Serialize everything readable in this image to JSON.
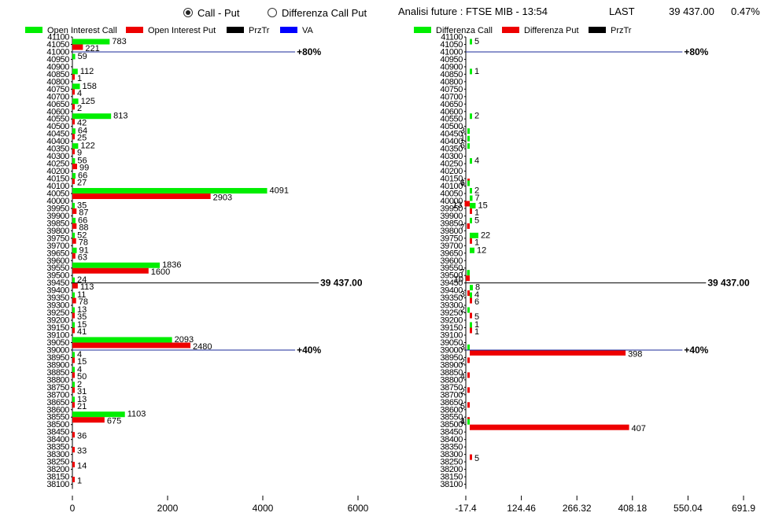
{
  "header": {
    "radio_call_put": "Call - Put",
    "radio_diff": "Differenza Call Put",
    "title": "Analisi future : FTSE MIB - 13:54",
    "last_label": "LAST",
    "last_value": "39 437.00",
    "change": "0.47%"
  },
  "chart_data": [
    {
      "type": "bar",
      "orientation": "horizontal",
      "legend": [
        "Open Interest Call",
        "Open Interest Put",
        "PrzTr",
        "VA"
      ],
      "legend_colors": [
        "#00ee00",
        "#ee0000",
        "#000000",
        "#0000ff"
      ],
      "y_labels": [
        "41100",
        "41050",
        "41000",
        "40950",
        "40900",
        "40850",
        "40800",
        "40750",
        "40700",
        "40650",
        "40600",
        "40550",
        "40500",
        "40450",
        "40400",
        "40350",
        "40300",
        "40250",
        "40200",
        "40150",
        "40100",
        "40050",
        "40000",
        "39950",
        "39900",
        "39850",
        "39800",
        "39750",
        "39700",
        "39650",
        "39600",
        "39550",
        "39500",
        "39450",
        "39400",
        "39350",
        "39300",
        "39250",
        "39200",
        "39150",
        "39100",
        "39050",
        "39000",
        "38950",
        "38900",
        "38850",
        "38800",
        "38750",
        "38700",
        "38650",
        "38600",
        "38550",
        "38500",
        "38450",
        "38400",
        "38350",
        "38300",
        "38250",
        "38200",
        "38150",
        "38100"
      ],
      "x_ticks": [
        0,
        2000,
        4000,
        6000
      ],
      "xlim": [
        0,
        6000
      ],
      "bars": [
        {
          "strike": "41050",
          "call": 783,
          "put": 221
        },
        {
          "strike": "40950",
          "call": 59
        },
        {
          "strike": "40850",
          "call": 112,
          "put": 1
        },
        {
          "strike": "40750",
          "call": 158,
          "put": 4
        },
        {
          "strike": "40650",
          "call": 125,
          "put": 2
        },
        {
          "strike": "40550",
          "call": 813,
          "put": 42
        },
        {
          "strike": "40450",
          "call": 64,
          "put": 25
        },
        {
          "strike": "40350",
          "call": 122,
          "put": 9
        },
        {
          "strike": "40250",
          "call": 56,
          "put": 99
        },
        {
          "strike": "40150",
          "call": 66,
          "put": 27
        },
        {
          "strike": "40050",
          "call": 4091,
          "put": 2903
        },
        {
          "strike": "39950",
          "call": 35,
          "put": 87
        },
        {
          "strike": "39850",
          "call": 66,
          "put": 88
        },
        {
          "strike": "39750",
          "call": 52,
          "put": 78
        },
        {
          "strike": "39650",
          "call": 91,
          "put": 63
        },
        {
          "strike": "39550",
          "call": 1836,
          "put": 1600
        },
        {
          "strike": "39450",
          "call": 24,
          "put": 113
        },
        {
          "strike": "39350",
          "call": 11,
          "put": 78
        },
        {
          "strike": "39250",
          "call": 13,
          "put": 35
        },
        {
          "strike": "39150",
          "call": 15,
          "put": 41
        },
        {
          "strike": "39050",
          "call": 2093,
          "put": 2480
        },
        {
          "strike": "38950",
          "call": 4,
          "put": 15
        },
        {
          "strike": "38850",
          "call": 4,
          "put": 50
        },
        {
          "strike": "38750",
          "call": 2,
          "put": 31
        },
        {
          "strike": "38650",
          "call": 13,
          "put": 21
        },
        {
          "strike": "38550",
          "call": 1103,
          "put": 675
        },
        {
          "strike": "38450",
          "put": 36
        },
        {
          "strike": "38350",
          "put": 33
        },
        {
          "strike": "38250",
          "put": 14
        },
        {
          "strike": "38150",
          "put": 1
        }
      ],
      "lines": [
        {
          "name": "80%",
          "strike": "41000",
          "color": "#1a2a9a"
        },
        {
          "name": "39 437.00",
          "strike": "39450",
          "color": "#000000"
        },
        {
          "name": "40%",
          "strike": "39000",
          "color": "#1a2a9a"
        }
      ],
      "line_labels": {
        "top": "80%",
        "price": "39 437.00",
        "bottom": "40%"
      }
    },
    {
      "type": "bar",
      "orientation": "horizontal",
      "legend": [
        "Differenza Call",
        "Differenza Put",
        "PrzTr"
      ],
      "legend_colors": [
        "#00ee00",
        "#ee0000",
        "#000000"
      ],
      "y_labels": [
        "41100",
        "41050",
        "41000",
        "40950",
        "40900",
        "40850",
        "40800",
        "40750",
        "40700",
        "40650",
        "40600",
        "40550",
        "40500",
        "40450",
        "40400",
        "40350",
        "40300",
        "40250",
        "40200",
        "40150",
        "40100",
        "40050",
        "40000",
        "39950",
        "39900",
        "39850",
        "39800",
        "39750",
        "39700",
        "39650",
        "39600",
        "39550",
        "39500",
        "39450",
        "39400",
        "39350",
        "39300",
        "39250",
        "39200",
        "39150",
        "39100",
        "39050",
        "39000",
        "38950",
        "38900",
        "38850",
        "38800",
        "38750",
        "38700",
        "38650",
        "38600",
        "38550",
        "38500",
        "38450",
        "38400",
        "38350",
        "38300",
        "38250",
        "38200",
        "38150",
        "38100"
      ],
      "x_ticks": [
        "-17.4",
        "124.46",
        "266.32",
        "408.18",
        "550.04",
        "691.9"
      ],
      "xlim": [
        -17.4,
        691.9
      ],
      "bars": [
        {
          "strike": "41050",
          "call": 5
        },
        {
          "strike": "40850",
          "call": 1
        },
        {
          "strike": "40550",
          "call": 2
        },
        {
          "strike": "40450",
          "call": -3
        },
        {
          "strike": "40400",
          "call": -1
        },
        {
          "strike": "40350",
          "call": -6
        },
        {
          "strike": "40250",
          "call": 4
        },
        {
          "strike": "40150",
          "put": -1
        },
        {
          "strike": "40100",
          "call": -6
        },
        {
          "strike": "40050",
          "call": 2
        },
        {
          "strike": "40000",
          "call": 7,
          "put": -13
        },
        {
          "strike": "39950",
          "call": 15,
          "put": 1
        },
        {
          "strike": "39850",
          "call": 5,
          "put": -7
        },
        {
          "strike": "39750",
          "call": 22,
          "put": 1
        },
        {
          "strike": "39650",
          "call": 12
        },
        {
          "strike": "39500",
          "call": -7,
          "put": -10
        },
        {
          "strike": "39400",
          "call": 8,
          "put": -3
        },
        {
          "strike": "39350",
          "call": 4,
          "put": 6
        },
        {
          "strike": "39250",
          "call": -2,
          "put": 5
        },
        {
          "strike": "39150",
          "call": 1,
          "put": 1
        },
        {
          "strike": "39000",
          "call": -3,
          "put": 398
        },
        {
          "strike": "38950",
          "put": -2
        },
        {
          "strike": "38850",
          "put": -4
        },
        {
          "strike": "38750",
          "put": -2
        },
        {
          "strike": "38650",
          "put": -5
        },
        {
          "strike": "38550",
          "put": -1
        },
        {
          "strike": "38500",
          "call": -4,
          "put": 407
        },
        {
          "strike": "38300",
          "put": 5
        }
      ],
      "lines": [
        {
          "name": "80%",
          "strike": "41000",
          "color": "#1a2a9a"
        },
        {
          "name": "39 437.00",
          "strike": "39450",
          "color": "#000000"
        },
        {
          "name": "40%",
          "strike": "39000",
          "color": "#1a2a9a"
        }
      ],
      "line_labels": {
        "top": "80%",
        "price": "39 437.00",
        "bottom": "40%"
      }
    }
  ]
}
